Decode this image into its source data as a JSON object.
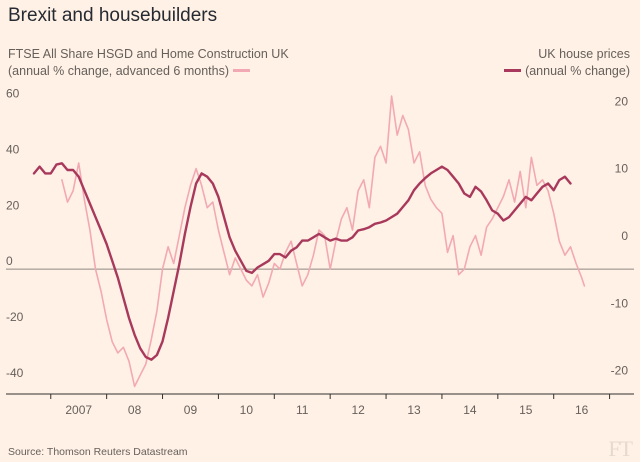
{
  "title": "Brexit and housebuilders",
  "legend": {
    "left_line1": "FTSE All Share HSGD and Home Construction UK",
    "left_line2": "(annual % change, advanced 6 months)",
    "right_line1": "UK house prices",
    "right_line2": "(annual % change)"
  },
  "source": "Source: Thomson Reuters Datastream",
  "logo": "FT",
  "colors": {
    "background": "#fff1e5",
    "housebuilders": "#f2a9b3",
    "house_prices": "#a8395c"
  },
  "chart_data": {
    "type": "line",
    "title": "Brexit and housebuilders",
    "x_tick_labels": [
      "2007",
      "08",
      "09",
      "10",
      "11",
      "12",
      "13",
      "14",
      "15",
      "16"
    ],
    "xlim": [
      2006.7,
      2016.9
    ],
    "left_axis": {
      "ticks": [
        -40,
        -20,
        0,
        20,
        40,
        60
      ],
      "ylim": [
        -44,
        62
      ]
    },
    "right_axis": {
      "ticks": [
        -20,
        -10,
        0,
        10,
        20
      ],
      "ylim": [
        -22,
        22
      ]
    },
    "zero_line": true,
    "series": [
      {
        "name": "FTSE All Share HSGD and Home Construction UK (annual % change, advanced 6 months)",
        "axis": "left",
        "color": "#f2a9b3",
        "x": [
          2007.2,
          2007.3,
          2007.4,
          2007.5,
          2007.6,
          2007.7,
          2007.8,
          2007.9,
          2008.0,
          2008.1,
          2008.2,
          2008.3,
          2008.4,
          2008.5,
          2008.6,
          2008.7,
          2008.8,
          2008.9,
          2009.0,
          2009.1,
          2009.2,
          2009.3,
          2009.4,
          2009.5,
          2009.6,
          2009.7,
          2009.8,
          2009.9,
          2010.0,
          2010.1,
          2010.2,
          2010.3,
          2010.4,
          2010.5,
          2010.6,
          2010.7,
          2010.8,
          2010.9,
          2011.0,
          2011.1,
          2011.2,
          2011.3,
          2011.4,
          2011.5,
          2011.6,
          2011.7,
          2011.8,
          2011.9,
          2012.0,
          2012.1,
          2012.2,
          2012.3,
          2012.4,
          2012.5,
          2012.6,
          2012.7,
          2012.8,
          2012.9,
          2013.0,
          2013.1,
          2013.2,
          2013.3,
          2013.4,
          2013.5,
          2013.6,
          2013.7,
          2013.8,
          2013.9,
          2014.0,
          2014.1,
          2014.2,
          2014.3,
          2014.4,
          2014.5,
          2014.6,
          2014.7,
          2014.8,
          2014.9,
          2015.0,
          2015.1,
          2015.2,
          2015.3,
          2015.4,
          2015.5,
          2015.6,
          2015.7,
          2015.8,
          2015.9,
          2016.0,
          2016.1,
          2016.2,
          2016.3,
          2016.4,
          2016.5,
          2016.55
        ],
        "values": [
          32,
          24,
          28,
          38,
          25,
          14,
          0,
          -8,
          -18,
          -26,
          -30,
          -28,
          -33,
          -42,
          -38,
          -34,
          -25,
          -15,
          0,
          8,
          2,
          12,
          22,
          30,
          36,
          30,
          22,
          24,
          14,
          6,
          -2,
          4,
          0,
          -4,
          -6,
          -2,
          -10,
          -5,
          2,
          0,
          6,
          10,
          2,
          -6,
          -2,
          5,
          14,
          12,
          0,
          10,
          18,
          22,
          14,
          28,
          32,
          22,
          40,
          44,
          38,
          62,
          48,
          55,
          50,
          38,
          42,
          30,
          25,
          22,
          20,
          6,
          12,
          -2,
          0,
          8,
          12,
          5,
          15,
          18,
          22,
          26,
          32,
          24,
          35,
          22,
          40,
          30,
          32,
          28,
          20,
          10,
          5,
          8,
          2,
          -3,
          -6
        ]
      },
      {
        "name": "UK house prices (annual % change)",
        "axis": "right",
        "color": "#a8395c",
        "x": [
          2006.7,
          2006.8,
          2006.9,
          2007.0,
          2007.1,
          2007.2,
          2007.3,
          2007.4,
          2007.5,
          2007.6,
          2007.7,
          2007.8,
          2007.9,
          2008.0,
          2008.1,
          2008.2,
          2008.3,
          2008.4,
          2008.5,
          2008.6,
          2008.7,
          2008.8,
          2008.9,
          2009.0,
          2009.1,
          2009.2,
          2009.3,
          2009.4,
          2009.5,
          2009.6,
          2009.7,
          2009.8,
          2009.9,
          2010.0,
          2010.1,
          2010.2,
          2010.3,
          2010.4,
          2010.5,
          2010.6,
          2010.7,
          2010.8,
          2010.9,
          2011.0,
          2011.1,
          2011.2,
          2011.3,
          2011.4,
          2011.5,
          2011.6,
          2011.7,
          2011.8,
          2011.9,
          2012.0,
          2012.1,
          2012.2,
          2012.3,
          2012.4,
          2012.5,
          2012.6,
          2012.7,
          2012.8,
          2012.9,
          2013.0,
          2013.1,
          2013.2,
          2013.3,
          2013.4,
          2013.5,
          2013.6,
          2013.7,
          2013.8,
          2013.9,
          2014.0,
          2014.1,
          2014.2,
          2014.3,
          2014.4,
          2014.5,
          2014.6,
          2014.7,
          2014.8,
          2014.9,
          2015.0,
          2015.1,
          2015.2,
          2015.3,
          2015.4,
          2015.5,
          2015.6,
          2015.7,
          2015.8,
          2015.9,
          2016.0,
          2016.1,
          2016.2,
          2016.3
        ],
        "values": [
          10.5,
          11.5,
          10.5,
          10.5,
          11.8,
          12.0,
          11.0,
          11.0,
          10.0,
          8.0,
          6.0,
          4.0,
          2.0,
          0.0,
          -2.5,
          -5.0,
          -8.0,
          -11.0,
          -13.5,
          -15.5,
          -16.8,
          -17.2,
          -16.5,
          -14.5,
          -11.0,
          -7.0,
          -3.0,
          1.5,
          5.5,
          9.0,
          10.5,
          10.0,
          9.0,
          7.0,
          4.0,
          1.0,
          -1.0,
          -2.5,
          -4.0,
          -4.3,
          -3.5,
          -3.0,
          -2.5,
          -1.5,
          -1.5,
          -2.0,
          -1.0,
          -0.5,
          0.5,
          0.5,
          1.0,
          1.5,
          1.0,
          0.5,
          0.8,
          0.5,
          0.5,
          1.0,
          2.0,
          2.2,
          2.5,
          3.0,
          3.2,
          3.5,
          4.0,
          4.5,
          5.5,
          6.5,
          8.0,
          9.0,
          9.8,
          10.5,
          11.0,
          11.5,
          11.0,
          10.0,
          9.0,
          7.5,
          7.0,
          8.5,
          7.8,
          6.5,
          5.0,
          4.5,
          3.5,
          4.0,
          5.0,
          6.0,
          7.0,
          6.5,
          7.5,
          8.5,
          9.0,
          8.0,
          9.5,
          10.0,
          9.0
        ]
      }
    ]
  }
}
